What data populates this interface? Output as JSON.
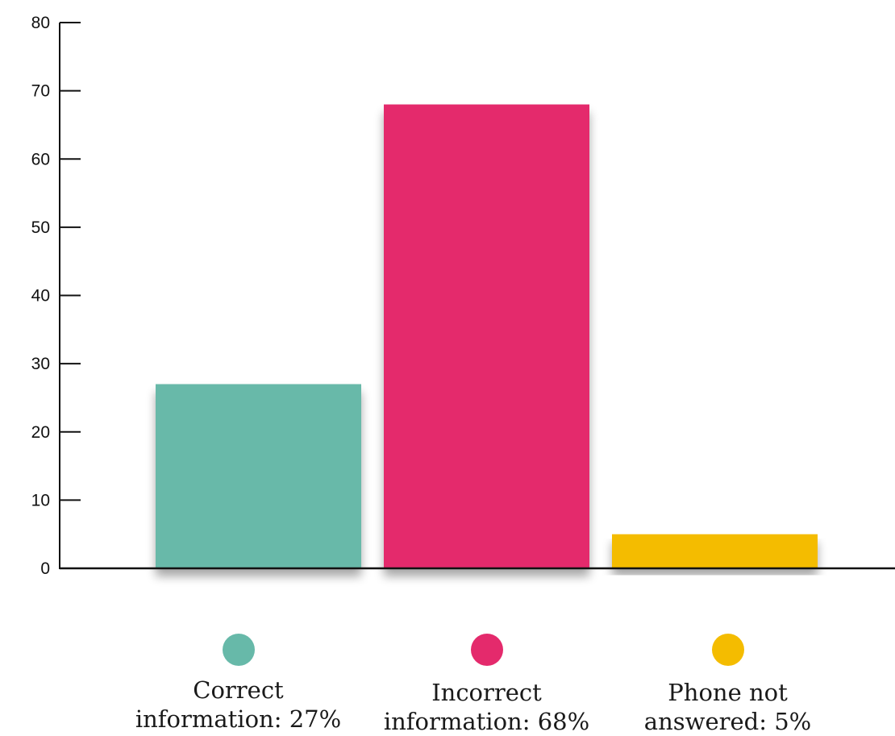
{
  "chart_data": {
    "type": "bar",
    "categories": [
      "Correct information: 27%",
      "Incorrect information: 68%",
      "Phone not answered: 5%"
    ],
    "values": [
      27,
      68,
      5
    ],
    "colors": [
      "#67b9a9",
      "#e42a6c",
      "#f4bc00"
    ],
    "ylim": [
      0,
      80
    ],
    "yticks": [
      "0",
      "10",
      "20",
      "30",
      "40",
      "50",
      "60",
      "70",
      "80"
    ],
    "grid": false,
    "legend_position": "bottom"
  },
  "legend": [
    {
      "line1": "Correct",
      "line2": "information: 27%",
      "color": "#67b9a9"
    },
    {
      "line1": "Incorrect",
      "line2": "information: 68%",
      "color": "#e42a6c"
    },
    {
      "line1": "Phone not",
      "line2": "answered: 5%",
      "color": "#f4bc00"
    }
  ]
}
